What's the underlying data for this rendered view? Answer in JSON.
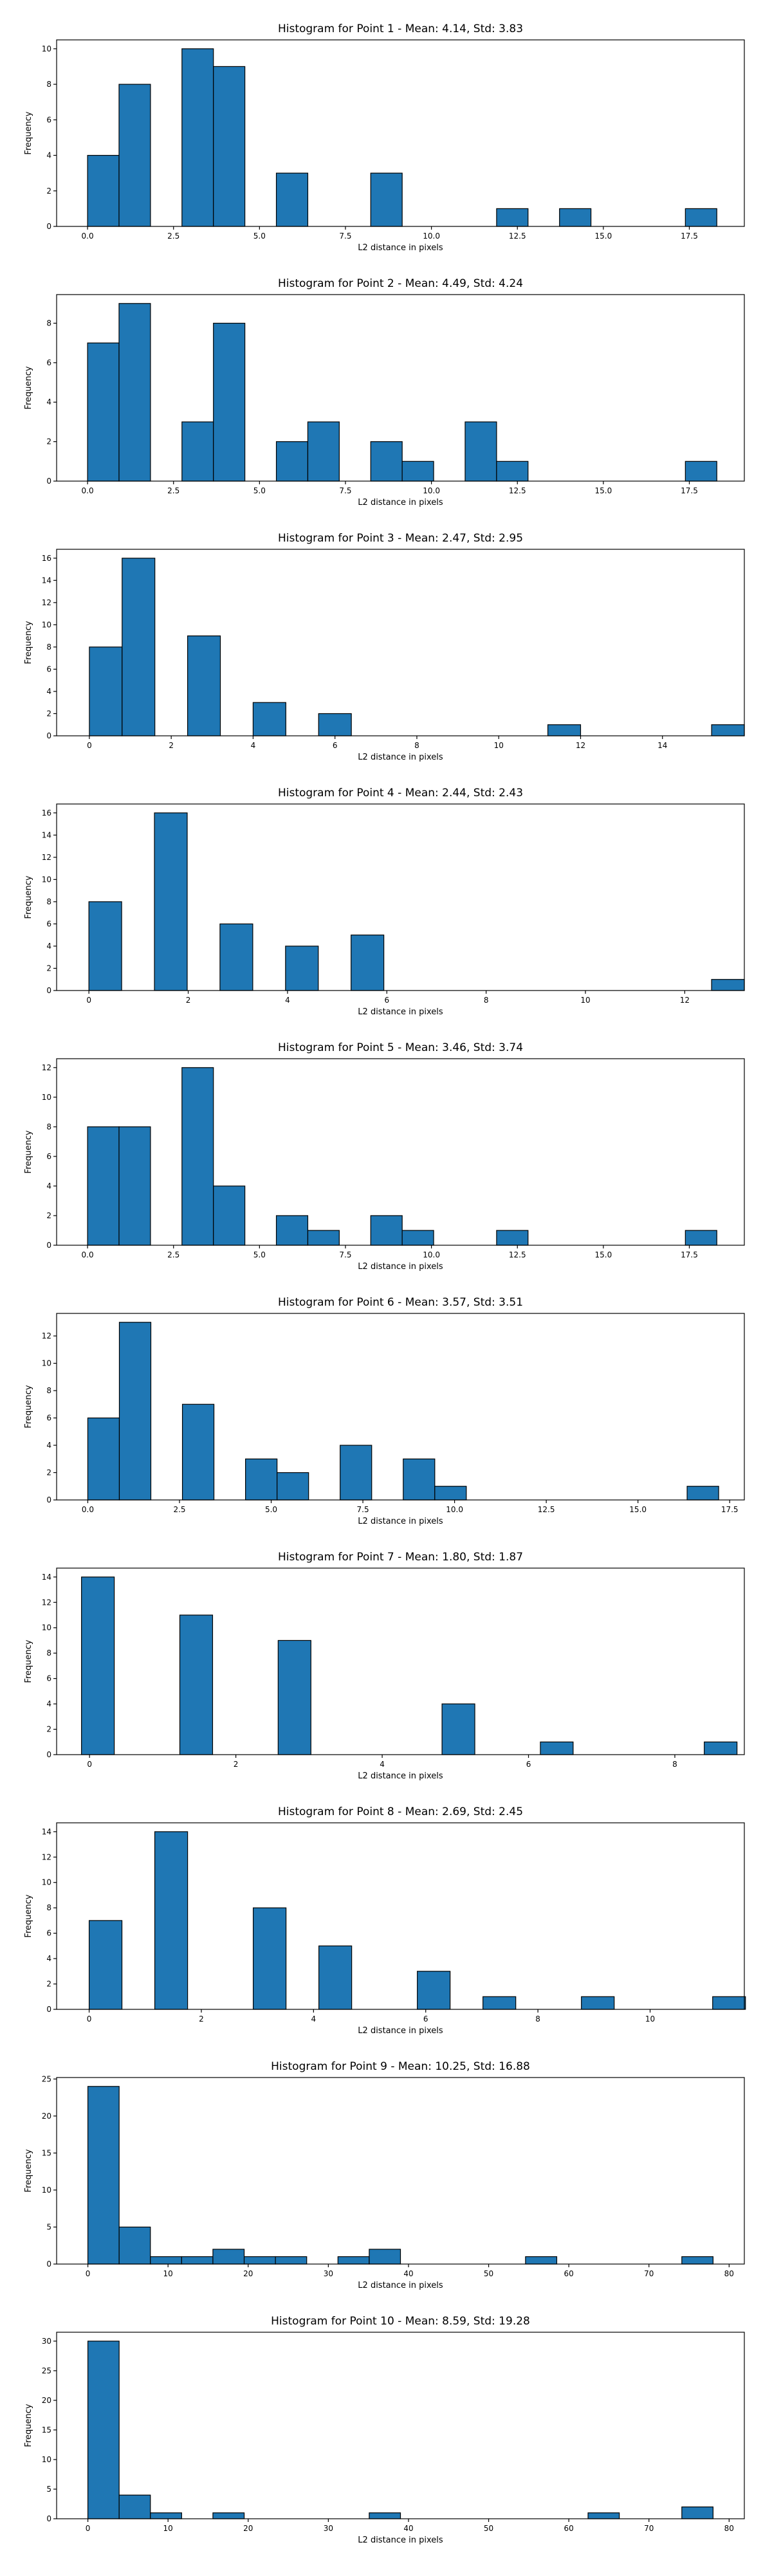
{
  "colors": {
    "bar_fill": "#1f77b4",
    "bar_edge": "#000000",
    "background": "#ffffff"
  },
  "chart_data": [
    {
      "type": "bar",
      "title": "Histogram for Point 1 - Mean: 4.14, Std: 3.83",
      "xlabel": "L2 distance in pixels",
      "ylabel": "Frequency",
      "xlim": [
        -0.9,
        19.1
      ],
      "ylim": [
        0,
        10.5
      ],
      "xticks": [
        0.0,
        2.5,
        5.0,
        7.5,
        10.0,
        12.5,
        15.0,
        17.5
      ],
      "xtick_labels": [
        "0.0",
        "2.5",
        "5.0",
        "7.5",
        "10.0",
        "12.5",
        "15.0",
        "17.5"
      ],
      "yticks": [
        0,
        2,
        4,
        6,
        8,
        10
      ],
      "ytick_labels": [
        "0",
        "2",
        "4",
        "6",
        "8",
        "10"
      ],
      "bin_start": 0.0,
      "bin_width": 0.915,
      "values": [
        4,
        8,
        0,
        10,
        9,
        0,
        3,
        0,
        0,
        3,
        0,
        0,
        0,
        1,
        0,
        1,
        0,
        0,
        0,
        1
      ],
      "grid": false
    },
    {
      "type": "bar",
      "title": "Histogram for Point 2 - Mean: 4.49, Std: 4.24",
      "xlabel": "L2 distance in pixels",
      "ylabel": "Frequency",
      "xlim": [
        -0.9,
        19.1
      ],
      "ylim": [
        0,
        9.45
      ],
      "xticks": [
        0.0,
        2.5,
        5.0,
        7.5,
        10.0,
        12.5,
        15.0,
        17.5
      ],
      "xtick_labels": [
        "0.0",
        "2.5",
        "5.0",
        "7.5",
        "10.0",
        "12.5",
        "15.0",
        "17.5"
      ],
      "yticks": [
        0,
        2,
        4,
        6,
        8
      ],
      "ytick_labels": [
        "0",
        "2",
        "4",
        "6",
        "8"
      ],
      "bin_start": 0.0,
      "bin_width": 0.915,
      "values": [
        7,
        9,
        0,
        3,
        8,
        0,
        2,
        3,
        0,
        2,
        1,
        0,
        3,
        1,
        0,
        0,
        0,
        0,
        0,
        1
      ],
      "grid": false
    },
    {
      "type": "bar",
      "title": "Histogram for Point 3 - Mean: 2.47, Std: 2.95",
      "xlabel": "L2 distance in pixels",
      "ylabel": "Frequency",
      "xlim": [
        -0.8,
        16.0
      ],
      "ylim": [
        0,
        16.8
      ],
      "xticks": [
        0,
        2,
        4,
        6,
        8,
        10,
        12,
        14
      ],
      "xtick_labels": [
        "0",
        "2",
        "4",
        "6",
        "8",
        "10",
        "12",
        "14"
      ],
      "yticks": [
        0,
        2,
        4,
        6,
        8,
        10,
        12,
        14,
        16
      ],
      "ytick_labels": [
        "0",
        "2",
        "4",
        "6",
        "8",
        "10",
        "12",
        "14",
        "16"
      ],
      "bin_start": 0.0,
      "bin_width": 0.8,
      "values": [
        8,
        16,
        0,
        9,
        0,
        3,
        0,
        2,
        0,
        0,
        0,
        0,
        0,
        0,
        1,
        0,
        0,
        0,
        0,
        1
      ],
      "grid": false
    },
    {
      "type": "bar",
      "title": "Histogram for Point 4 - Mean: 2.44, Std: 2.43",
      "xlabel": "L2 distance in pixels",
      "ylabel": "Frequency",
      "xlim": [
        -0.65,
        13.2
      ],
      "ylim": [
        0,
        16.8
      ],
      "xticks": [
        0,
        2,
        4,
        6,
        8,
        10,
        12
      ],
      "xtick_labels": [
        "0",
        "2",
        "4",
        "6",
        "8",
        "10",
        "12"
      ],
      "yticks": [
        0,
        2,
        4,
        6,
        8,
        10,
        12,
        14,
        16
      ],
      "ytick_labels": [
        "0",
        "2",
        "4",
        "6",
        "8",
        "10",
        "12",
        "14",
        "16"
      ],
      "bin_start": 0.0,
      "bin_width": 0.66,
      "values": [
        8,
        0,
        16,
        0,
        6,
        0,
        4,
        0,
        5,
        0,
        0,
        0,
        0,
        0,
        0,
        0,
        0,
        0,
        0,
        1
      ],
      "grid": false
    },
    {
      "type": "bar",
      "title": "Histogram for Point 5 - Mean: 3.46, Std: 3.74",
      "xlabel": "L2 distance in pixels",
      "ylabel": "Frequency",
      "xlim": [
        -0.9,
        19.1
      ],
      "ylim": [
        0,
        12.6
      ],
      "xticks": [
        0.0,
        2.5,
        5.0,
        7.5,
        10.0,
        12.5,
        15.0,
        17.5
      ],
      "xtick_labels": [
        "0.0",
        "2.5",
        "5.0",
        "7.5",
        "10.0",
        "12.5",
        "15.0",
        "17.5"
      ],
      "yticks": [
        0,
        2,
        4,
        6,
        8,
        10,
        12
      ],
      "ytick_labels": [
        "0",
        "2",
        "4",
        "6",
        "8",
        "10",
        "12"
      ],
      "bin_start": 0.0,
      "bin_width": 0.915,
      "values": [
        8,
        8,
        0,
        12,
        4,
        0,
        2,
        1,
        0,
        2,
        1,
        0,
        0,
        1,
        0,
        0,
        0,
        0,
        0,
        1
      ],
      "grid": false
    },
    {
      "type": "bar",
      "title": "Histogram for Point 6 - Mean: 3.57, Std: 3.51",
      "xlabel": "L2 distance in pixels",
      "ylabel": "Frequency",
      "xlim": [
        -0.85,
        17.9
      ],
      "ylim": [
        0,
        13.65
      ],
      "xticks": [
        0.0,
        2.5,
        5.0,
        7.5,
        10.0,
        12.5,
        15.0,
        17.5
      ],
      "xtick_labels": [
        "0.0",
        "2.5",
        "5.0",
        "7.5",
        "10.0",
        "12.5",
        "15.0",
        "17.5"
      ],
      "yticks": [
        0,
        2,
        4,
        6,
        8,
        10,
        12
      ],
      "ytick_labels": [
        "0",
        "2",
        "4",
        "6",
        "8",
        "10",
        "12"
      ],
      "bin_start": 0.0,
      "bin_width": 0.86,
      "values": [
        6,
        13,
        0,
        7,
        0,
        3,
        2,
        0,
        4,
        0,
        3,
        1,
        0,
        0,
        0,
        0,
        0,
        0,
        0,
        1
      ],
      "grid": false
    },
    {
      "type": "bar",
      "title": "Histogram for Point 7 - Mean: 1.80, Std: 1.87",
      "xlabel": "L2 distance in pixels",
      "ylabel": "Frequency",
      "xlim": [
        -0.45,
        8.95
      ],
      "ylim": [
        0,
        14.7
      ],
      "xticks": [
        0,
        2,
        4,
        6,
        8
      ],
      "xtick_labels": [
        "0",
        "2",
        "4",
        "6",
        "8"
      ],
      "yticks": [
        0,
        2,
        4,
        6,
        8,
        10,
        12,
        14
      ],
      "ytick_labels": [
        "0",
        "2",
        "4",
        "6",
        "8",
        "10",
        "12",
        "14"
      ],
      "bin_start": -0.11,
      "bin_width": 0.448,
      "values": [
        14,
        0,
        0,
        11,
        0,
        0,
        9,
        0,
        0,
        0,
        0,
        4,
        0,
        0,
        1,
        0,
        0,
        0,
        0,
        1
      ],
      "grid": false
    },
    {
      "type": "bar",
      "title": "Histogram for Point 8 - Mean: 2.69, Std: 2.45",
      "xlabel": "L2 distance in pixels",
      "ylabel": "Frequency",
      "xlim": [
        -0.58,
        11.68
      ],
      "ylim": [
        0,
        14.7
      ],
      "xticks": [
        0,
        2,
        4,
        6,
        8,
        10
      ],
      "xtick_labels": [
        "0",
        "2",
        "4",
        "6",
        "8",
        "10"
      ],
      "yticks": [
        0,
        2,
        4,
        6,
        8,
        10,
        12,
        14
      ],
      "ytick_labels": [
        "0",
        "2",
        "4",
        "6",
        "8",
        "10",
        "12",
        "14"
      ],
      "bin_start": 0.0,
      "bin_width": 0.585,
      "values": [
        7,
        0,
        14,
        0,
        0,
        8,
        0,
        5,
        0,
        0,
        3,
        0,
        1,
        0,
        0,
        1,
        0,
        0,
        0,
        1
      ],
      "grid": false
    },
    {
      "type": "bar",
      "title": "Histogram for Point 9 - Mean: 10.25, Std: 16.88",
      "xlabel": "L2 distance in pixels",
      "ylabel": "Frequency",
      "xlim": [
        -3.9,
        81.9
      ],
      "ylim": [
        0,
        25.2
      ],
      "xticks": [
        0,
        10,
        20,
        30,
        40,
        50,
        60,
        70,
        80
      ],
      "xtick_labels": [
        "0",
        "10",
        "20",
        "30",
        "40",
        "50",
        "60",
        "70",
        "80"
      ],
      "yticks": [
        0,
        5,
        10,
        15,
        20,
        25
      ],
      "ytick_labels": [
        "0",
        "5",
        "10",
        "15",
        "20",
        "25"
      ],
      "bin_start": 0.0,
      "bin_width": 3.9,
      "values": [
        24,
        5,
        1,
        1,
        2,
        1,
        1,
        0,
        1,
        2,
        0,
        0,
        0,
        0,
        1,
        0,
        0,
        0,
        0,
        1
      ],
      "grid": false
    },
    {
      "type": "bar",
      "title": "Histogram for Point 10 - Mean: 8.59, Std: 19.28",
      "xlabel": "L2 distance in pixels",
      "ylabel": "Frequency",
      "xlim": [
        -3.9,
        81.9
      ],
      "ylim": [
        0,
        31.5
      ],
      "xticks": [
        0,
        10,
        20,
        30,
        40,
        50,
        60,
        70,
        80
      ],
      "xtick_labels": [
        "0",
        "10",
        "20",
        "30",
        "40",
        "50",
        "60",
        "70",
        "80"
      ],
      "yticks": [
        0,
        5,
        10,
        15,
        20,
        25,
        30
      ],
      "ytick_labels": [
        "0",
        "5",
        "10",
        "15",
        "20",
        "25",
        "30"
      ],
      "bin_start": 0.0,
      "bin_width": 3.9,
      "values": [
        30,
        4,
        1,
        0,
        1,
        0,
        0,
        0,
        0,
        1,
        0,
        0,
        0,
        0,
        0,
        0,
        1,
        0,
        0,
        2
      ],
      "grid": false
    }
  ]
}
